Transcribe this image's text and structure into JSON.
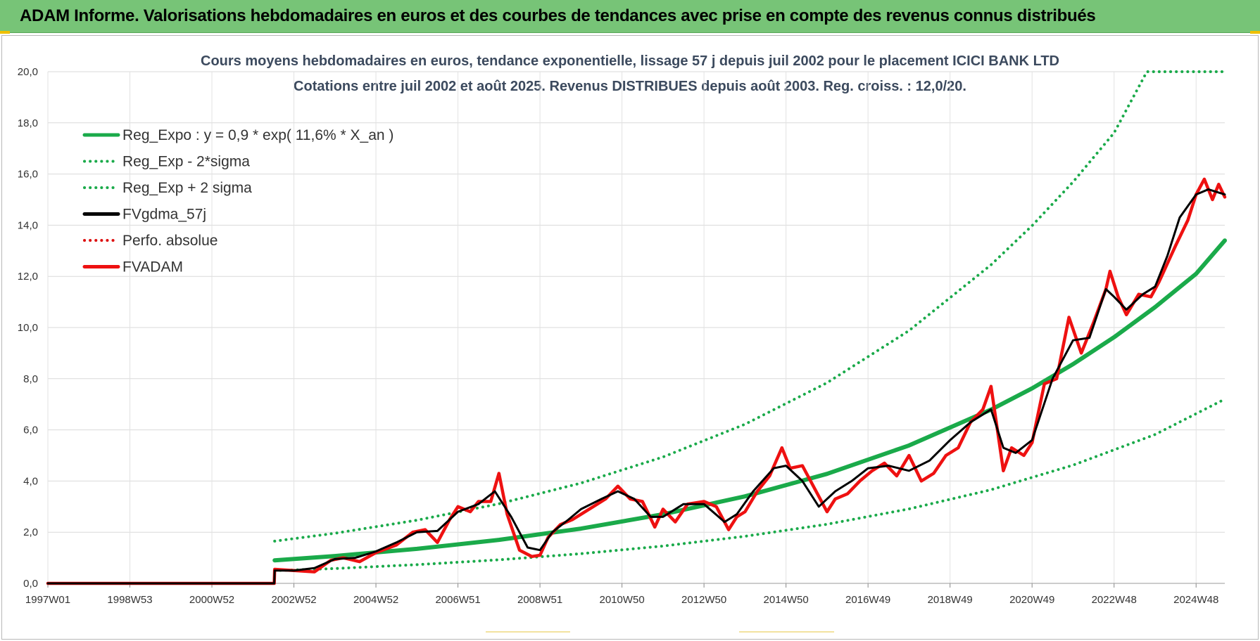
{
  "header": {
    "banner_title": "ADAM Informe. Valorisations hebdomadaires en euros et des courbes de tendances avec prise en compte des revenus connus distribués"
  },
  "colors": {
    "banner_bg": "#77c477",
    "reg_expo": "#1aaa4a",
    "fvgdma": "#000000",
    "fvadam": "#ee1111",
    "perfo": "#dd1111",
    "title_text": "#3c4a5e"
  },
  "chart_data": {
    "type": "line",
    "title": "Cours moyens hebdomadaires en euros, tendance exponentielle, lissage 57 j depuis juil 2002 pour le placement ICICI BANK LTD",
    "subtitle": "Cotations entre juil 2002 et août 2025. Revenus DISTRIBUES depuis août 2003. Reg. croiss. : 12,0/20.",
    "xlabel": "",
    "ylabel": "",
    "ylim": [
      0,
      20
    ],
    "xlim": [
      1997.0,
      2025.7
    ],
    "grid": true,
    "legend_position": "top-left",
    "y_ticks": [
      "0,0",
      "2,0",
      "4,0",
      "6,0",
      "8,0",
      "10,0",
      "12,0",
      "14,0",
      "16,0",
      "18,0",
      "20,0"
    ],
    "x_ticks": [
      {
        "label": "1997W01",
        "x": 1997.0
      },
      {
        "label": "1998W53",
        "x": 1999.0
      },
      {
        "label": "2000W52",
        "x": 2001.0
      },
      {
        "label": "2002W52",
        "x": 2003.0
      },
      {
        "label": "2004W52",
        "x": 2005.0
      },
      {
        "label": "2006W51",
        "x": 2007.0
      },
      {
        "label": "2008W51",
        "x": 2009.0
      },
      {
        "label": "2010W50",
        "x": 2011.0
      },
      {
        "label": "2012W50",
        "x": 2013.0
      },
      {
        "label": "2014W50",
        "x": 2015.0
      },
      {
        "label": "2016W49",
        "x": 2017.0
      },
      {
        "label": "2018W49",
        "x": 2019.0
      },
      {
        "label": "2020W49",
        "x": 2021.0
      },
      {
        "label": "2022W48",
        "x": 2023.0
      },
      {
        "label": "2024W48",
        "x": 2025.0
      }
    ],
    "legend": [
      {
        "name": "Reg_Expo : y = 0,9 * exp( 11,6% *  X_an )",
        "color": "#1aaa4a",
        "style": "solid"
      },
      {
        "name": "Reg_Exp - 2*sigma",
        "color": "#1aaa4a",
        "style": "dotted"
      },
      {
        "name": "Reg_Exp + 2 sigma",
        "color": "#1aaa4a",
        "style": "dotted"
      },
      {
        "name": "FVgdma_57j",
        "color": "#000000",
        "style": "solid"
      },
      {
        "name": "Perfo. absolue",
        "color": "#dd1111",
        "style": "dotted"
      },
      {
        "name": "FVADAM",
        "color": "#ee1111",
        "style": "solid"
      }
    ],
    "series": [
      {
        "name": "Reg_Expo : y = 0,9 * exp( 11,6% *  X_an )",
        "color": "#1aaa4a",
        "style": "solid",
        "x": [
          2002.53,
          2004.0,
          2006.0,
          2008.0,
          2010.0,
          2012.0,
          2014.0,
          2016.0,
          2018.0,
          2020.0,
          2021.0,
          2022.0,
          2023.0,
          2024.0,
          2025.0,
          2025.7
        ],
        "y": [
          0.9,
          1.07,
          1.35,
          1.7,
          2.14,
          2.7,
          3.4,
          4.28,
          5.39,
          6.79,
          7.62,
          8.57,
          9.62,
          10.8,
          12.1,
          13.4
        ]
      },
      {
        "name": "Reg_Exp - 2*sigma",
        "color": "#1aaa4a",
        "style": "dotted",
        "x": [
          2002.53,
          2004.0,
          2006.0,
          2008.0,
          2010.0,
          2012.0,
          2014.0,
          2016.0,
          2018.0,
          2020.0,
          2022.0,
          2024.0,
          2025.7
        ],
        "y": [
          0.5,
          0.58,
          0.73,
          0.92,
          1.16,
          1.46,
          1.84,
          2.31,
          2.91,
          3.66,
          4.62,
          5.82,
          7.2
        ]
      },
      {
        "name": "Reg_Exp + 2 sigma",
        "color": "#1aaa4a",
        "style": "dotted",
        "x": [
          2002.53,
          2004.0,
          2006.0,
          2008.0,
          2010.0,
          2012.0,
          2014.0,
          2016.0,
          2018.0,
          2020.0,
          2021.0,
          2022.0,
          2023.0,
          2023.8,
          2025.7
        ],
        "y": [
          1.65,
          1.96,
          2.47,
          3.11,
          3.92,
          4.94,
          6.22,
          7.84,
          9.88,
          12.45,
          13.98,
          15.69,
          17.61,
          20.0,
          20.0
        ]
      },
      {
        "name": "FVgdma_57j",
        "color": "#000000",
        "style": "solid",
        "x": [
          1997.0,
          2002.52,
          2002.53,
          2003.0,
          2003.5,
          2004.0,
          2004.5,
          2005.0,
          2005.5,
          2006.0,
          2006.5,
          2007.0,
          2007.5,
          2007.9,
          2008.3,
          2008.7,
          2009.0,
          2009.3,
          2009.7,
          2010.0,
          2010.5,
          2010.9,
          2011.3,
          2011.7,
          2012.0,
          2012.5,
          2013.0,
          2013.5,
          2013.8,
          2014.2,
          2014.7,
          2015.0,
          2015.4,
          2015.8,
          2016.2,
          2016.6,
          2017.0,
          2017.5,
          2018.0,
          2018.5,
          2019.0,
          2019.5,
          2020.0,
          2020.3,
          2020.6,
          2021.0,
          2021.5,
          2022.0,
          2022.4,
          2022.8,
          2023.0,
          2023.3,
          2023.7,
          2024.0,
          2024.3,
          2024.6,
          2025.0,
          2025.3,
          2025.7
        ],
        "y": [
          0.0,
          0.0,
          0.5,
          0.5,
          0.6,
          0.95,
          1.0,
          1.25,
          1.6,
          2.0,
          2.05,
          2.8,
          3.1,
          3.6,
          2.6,
          1.4,
          1.3,
          2.0,
          2.5,
          2.9,
          3.3,
          3.6,
          3.3,
          2.6,
          2.6,
          3.1,
          3.1,
          2.4,
          2.7,
          3.6,
          4.5,
          4.6,
          4.0,
          3.0,
          3.6,
          4.0,
          4.5,
          4.6,
          4.4,
          4.8,
          5.6,
          6.3,
          6.8,
          5.3,
          5.1,
          5.6,
          8.0,
          9.5,
          9.6,
          11.5,
          11.2,
          10.7,
          11.3,
          11.6,
          12.8,
          14.3,
          15.2,
          15.4,
          15.2
        ]
      },
      {
        "name": "Perfo. absolue",
        "color": "#dd1111",
        "style": "dotted",
        "x": [
          1997.0,
          2002.52
        ],
        "y": [
          0.0,
          0.0
        ]
      },
      {
        "name": "FVADAM",
        "color": "#ee1111",
        "style": "solid",
        "x": [
          1997.0,
          2002.52,
          2002.53,
          2003.0,
          2003.5,
          2003.9,
          2004.2,
          2004.6,
          2005.0,
          2005.5,
          2005.9,
          2006.2,
          2006.5,
          2006.8,
          2007.0,
          2007.3,
          2007.5,
          2007.8,
          2008.0,
          2008.2,
          2008.5,
          2008.8,
          2009.0,
          2009.2,
          2009.5,
          2009.8,
          2010.0,
          2010.3,
          2010.6,
          2010.9,
          2011.2,
          2011.5,
          2011.8,
          2012.0,
          2012.3,
          2012.6,
          2013.0,
          2013.3,
          2013.6,
          2013.8,
          2014.0,
          2014.3,
          2014.6,
          2014.9,
          2015.1,
          2015.4,
          2015.7,
          2016.0,
          2016.2,
          2016.5,
          2016.8,
          2017.1,
          2017.4,
          2017.7,
          2018.0,
          2018.3,
          2018.6,
          2018.9,
          2019.2,
          2019.5,
          2019.8,
          2020.0,
          2020.2,
          2020.3,
          2020.5,
          2020.8,
          2021.0,
          2021.3,
          2021.6,
          2021.9,
          2022.2,
          2022.5,
          2022.8,
          2022.9,
          2023.1,
          2023.3,
          2023.6,
          2023.9,
          2024.1,
          2024.3,
          2024.5,
          2024.8,
          2025.0,
          2025.2,
          2025.4,
          2025.55,
          2025.7
        ],
        "y": [
          0.0,
          0.0,
          0.55,
          0.5,
          0.45,
          0.9,
          1.0,
          0.85,
          1.2,
          1.5,
          2.0,
          2.1,
          1.6,
          2.5,
          3.0,
          2.8,
          3.2,
          3.2,
          4.3,
          2.7,
          1.3,
          1.05,
          1.1,
          1.8,
          2.3,
          2.5,
          2.7,
          3.0,
          3.3,
          3.8,
          3.3,
          3.2,
          2.2,
          2.9,
          2.4,
          3.1,
          3.2,
          3.0,
          2.1,
          2.6,
          2.8,
          3.6,
          4.2,
          5.3,
          4.5,
          4.6,
          3.7,
          2.8,
          3.3,
          3.5,
          4.0,
          4.4,
          4.7,
          4.2,
          5.0,
          4.0,
          4.3,
          5.0,
          5.3,
          6.3,
          6.8,
          7.7,
          5.5,
          4.4,
          5.3,
          5.0,
          5.5,
          7.8,
          8.0,
          10.4,
          9.0,
          10.2,
          11.5,
          12.2,
          11.2,
          10.5,
          11.3,
          11.2,
          11.8,
          12.5,
          13.2,
          14.2,
          15.2,
          15.8,
          15.0,
          15.6,
          15.1
        ]
      }
    ]
  }
}
